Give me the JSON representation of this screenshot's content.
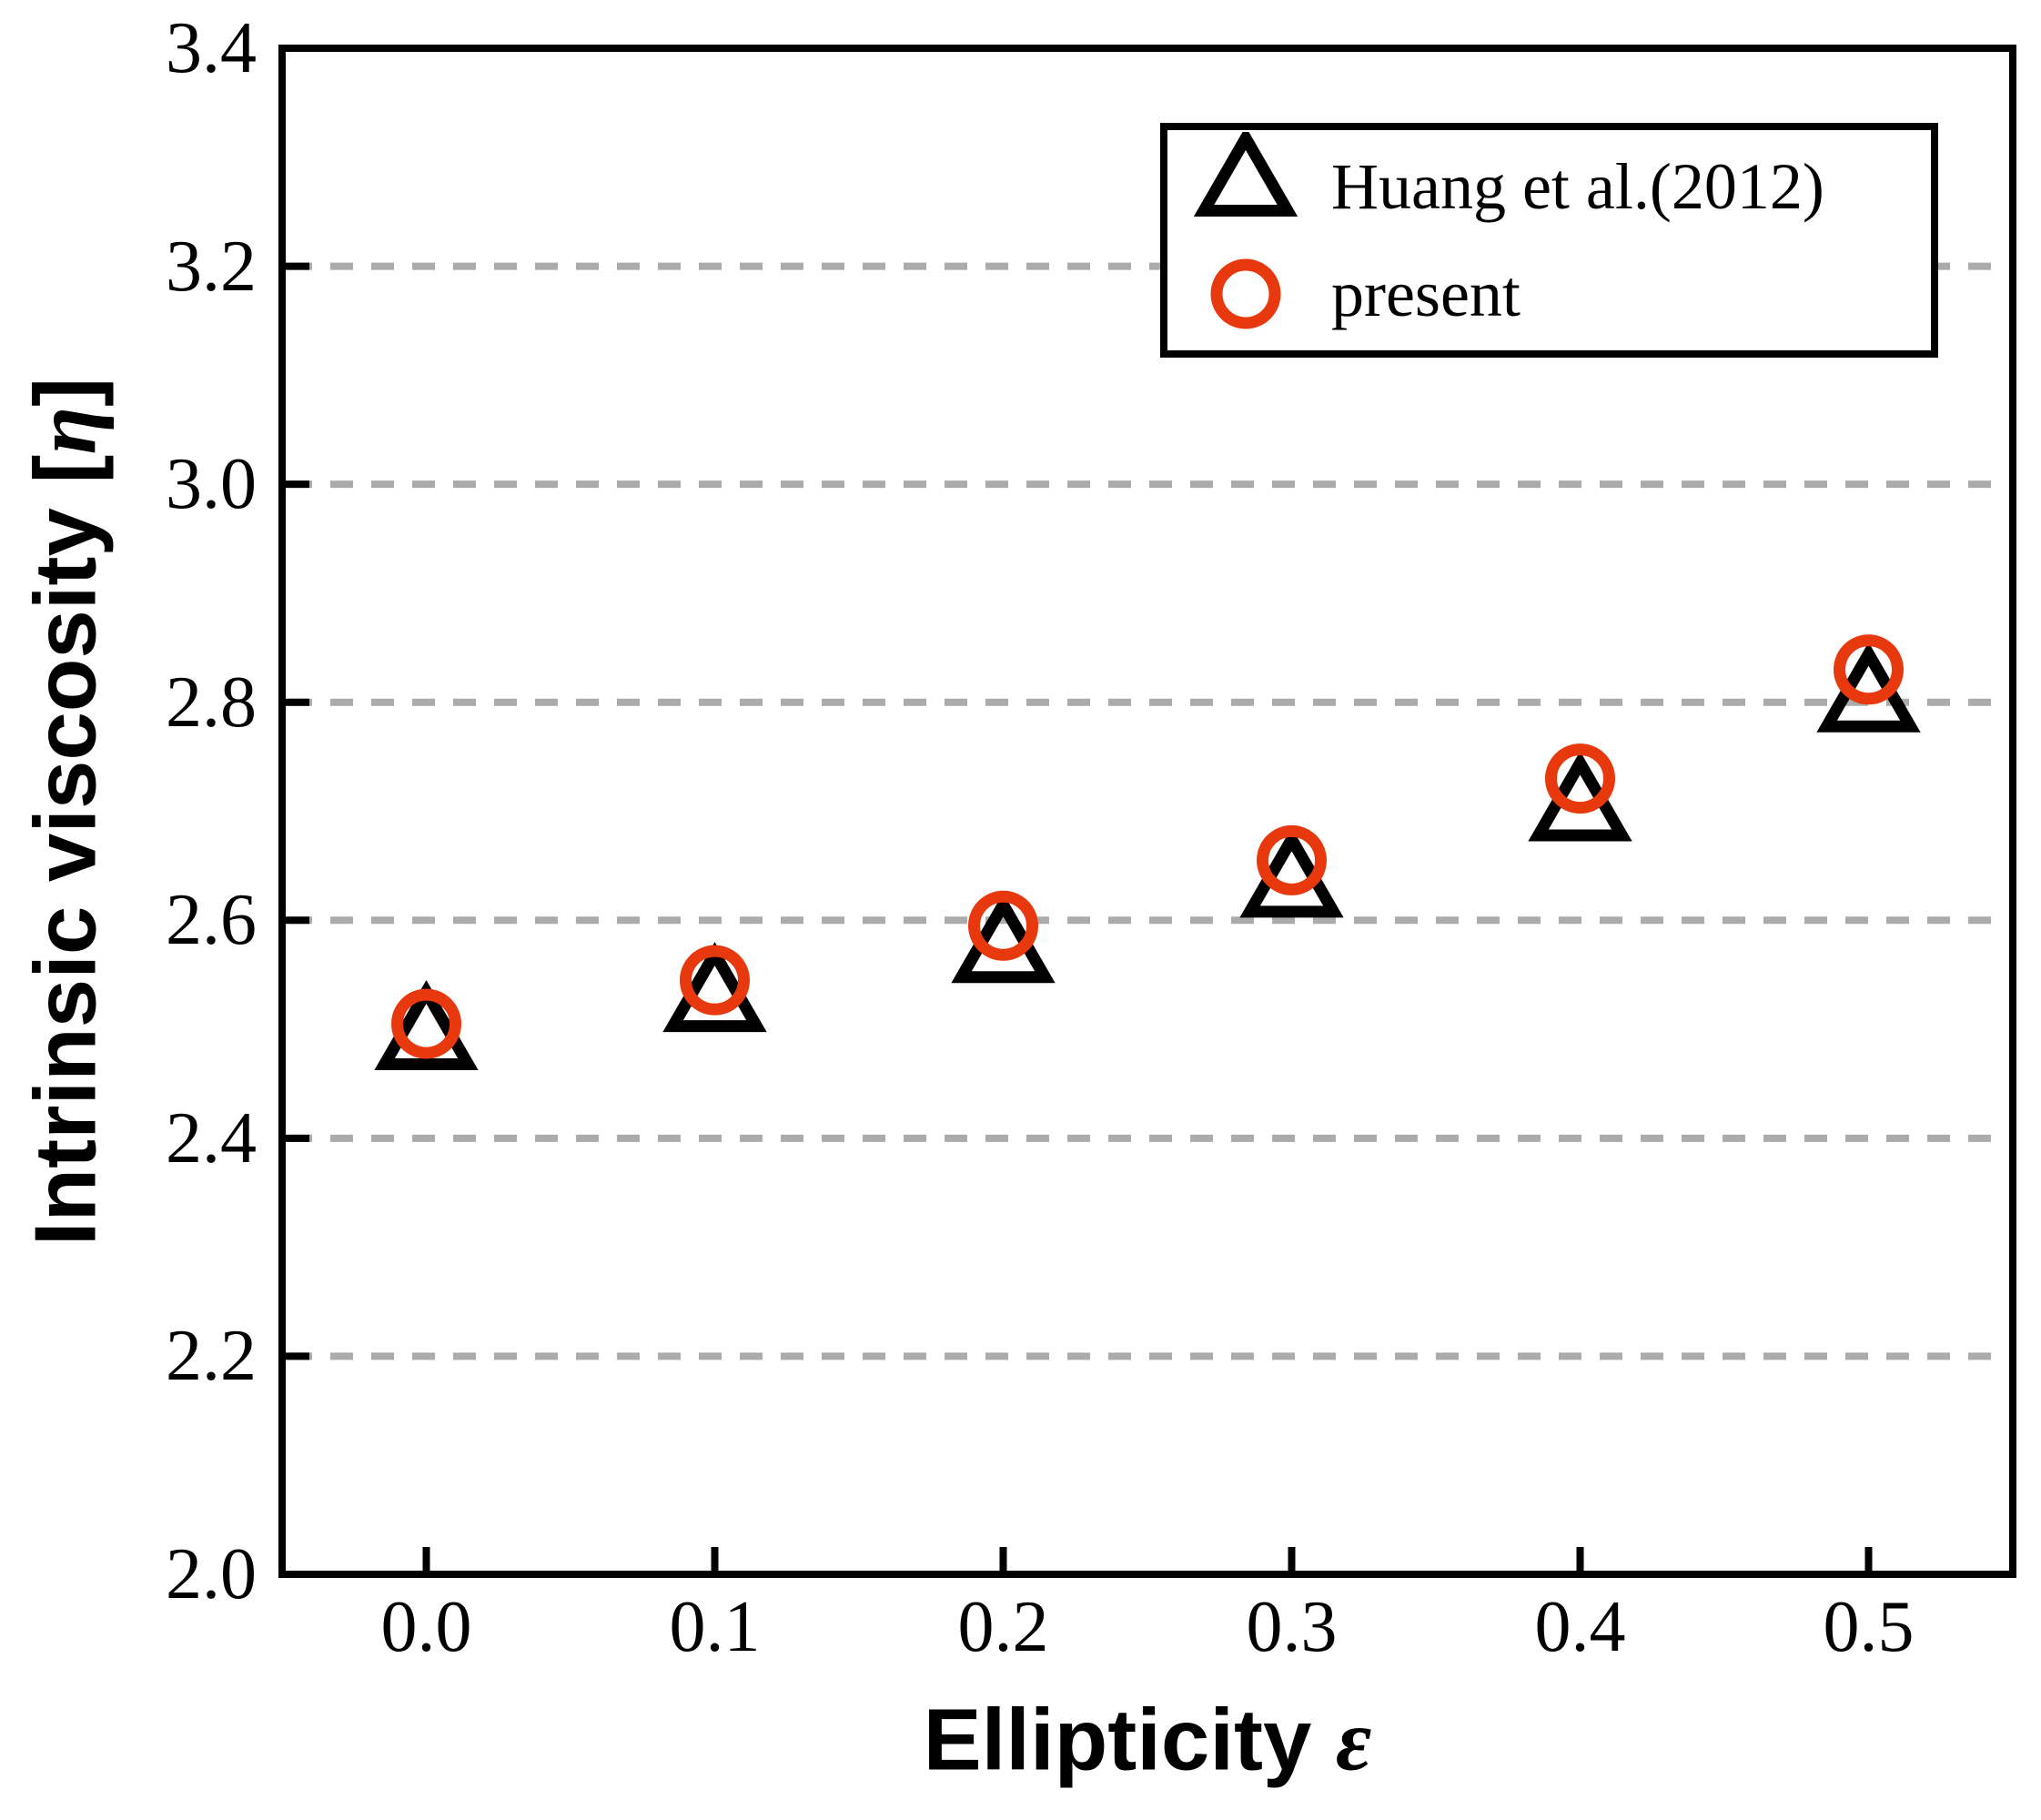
{
  "chart_data": {
    "type": "scatter",
    "title": "",
    "xlabel": "Ellipticity ε",
    "ylabel": "Intrinsic viscosity [η]",
    "x": [
      0.0,
      0.1,
      0.2,
      0.3,
      0.4,
      0.5
    ],
    "series": [
      {
        "name": "Huang et al.(2012)",
        "marker": "open-triangle",
        "color": "#000000",
        "values": [
          2.49,
          2.525,
          2.57,
          2.63,
          2.7,
          2.8
        ]
      },
      {
        "name": "present",
        "marker": "open-circle",
        "color": "#E8380D",
        "values": [
          2.505,
          2.545,
          2.595,
          2.655,
          2.73,
          2.83
        ]
      }
    ],
    "xlim": [
      -0.05,
      0.55
    ],
    "ylim": [
      2.0,
      3.4
    ],
    "xticks": [
      0.0,
      0.1,
      0.2,
      0.3,
      0.4,
      0.5
    ],
    "yticks": [
      2.0,
      2.2,
      2.4,
      2.6,
      2.8,
      3.0,
      3.2,
      3.4
    ],
    "grid_y": [
      2.2,
      2.4,
      2.6,
      2.8,
      3.0,
      3.2
    ],
    "grid_style": "horizontal-dashed",
    "legend_position": "top-right"
  },
  "axes": {
    "x": {
      "prefix": "Ellipticity ",
      "symbol": "ε"
    },
    "y": {
      "prefix": "Intrinsic viscosity [",
      "symbol": "η",
      "suffix": "]"
    }
  },
  "legend": {
    "items": [
      {
        "label": "Huang et al.(2012)",
        "marker": "open-triangle"
      },
      {
        "label": "present",
        "marker": "open-circle"
      }
    ]
  },
  "colors": {
    "marker_red": "#E8380D",
    "marker_black": "#000000",
    "grid_gray": "#ABABAB",
    "background": "#FFFFFF"
  }
}
